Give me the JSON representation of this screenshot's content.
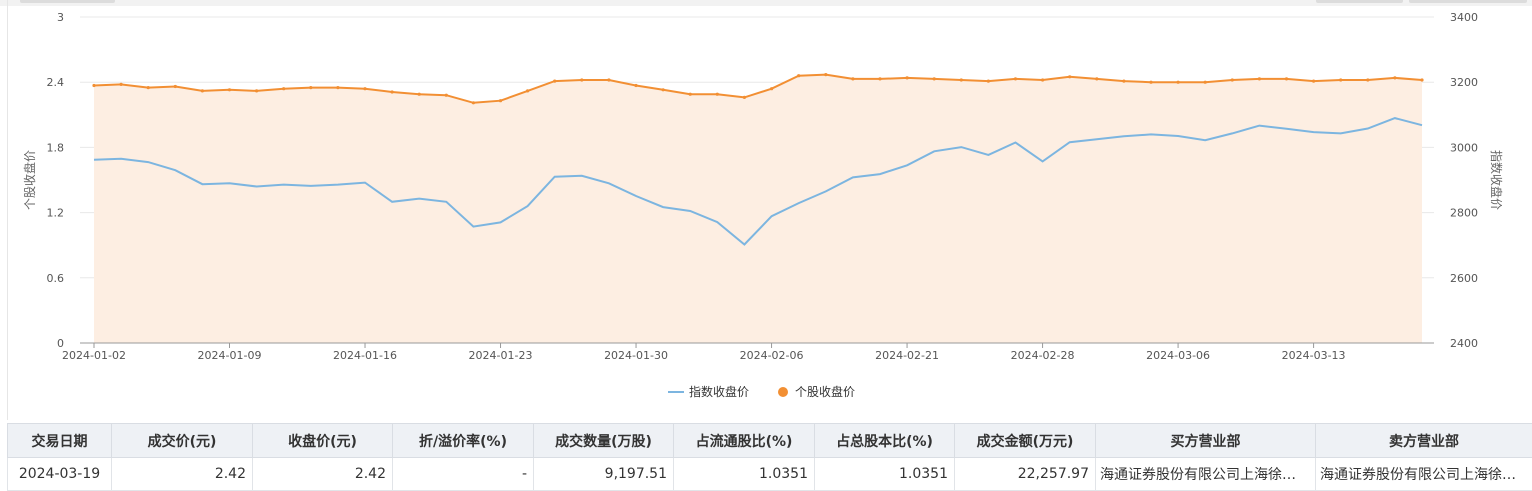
{
  "chart_data": {
    "type": "line",
    "title": "",
    "x": [
      "2024-01-02",
      "2024-01-03",
      "2024-01-04",
      "2024-01-05",
      "2024-01-08",
      "2024-01-09",
      "2024-01-10",
      "2024-01-11",
      "2024-01-12",
      "2024-01-15",
      "2024-01-16",
      "2024-01-17",
      "2024-01-18",
      "2024-01-19",
      "2024-01-22",
      "2024-01-23",
      "2024-01-24",
      "2024-01-25",
      "2024-01-26",
      "2024-01-29",
      "2024-01-30",
      "2024-01-31",
      "2024-02-01",
      "2024-02-02",
      "2024-02-05",
      "2024-02-06",
      "2024-02-07",
      "2024-02-08",
      "2024-02-19",
      "2024-02-20",
      "2024-02-21",
      "2024-02-22",
      "2024-02-23",
      "2024-02-26",
      "2024-02-27",
      "2024-02-28",
      "2024-02-29",
      "2024-03-01",
      "2024-03-04",
      "2024-03-05",
      "2024-03-06",
      "2024-03-07",
      "2024-03-08",
      "2024-03-11",
      "2024-03-12",
      "2024-03-13",
      "2024-03-14",
      "2024-03-15",
      "2024-03-18",
      "2024-03-19"
    ],
    "x_tick_labels": [
      "2024-01-02",
      "2024-01-09",
      "2024-01-16",
      "2024-01-23",
      "2024-01-30",
      "2024-02-06",
      "2024-02-21",
      "2024-02-28",
      "2024-03-06",
      "2024-03-13"
    ],
    "y_left": {
      "label": "个股收盘价",
      "ylim": [
        0,
        3
      ],
      "ticks": [
        "0",
        "0.6",
        "1.2",
        "1.8",
        "2.4",
        "3"
      ]
    },
    "y_right": {
      "label": "指数收盘价",
      "ylim": [
        2400,
        3400
      ],
      "ticks": [
        "2400",
        "2600",
        "2800",
        "3000",
        "3200",
        "3400"
      ]
    },
    "grid": true,
    "legend": "bottom-center",
    "series": [
      {
        "name": "指数收盘价",
        "axis": "right",
        "color": "#7cb5e0",
        "values": [
          2962,
          2965,
          2955,
          2930,
          2887,
          2890,
          2880,
          2886,
          2882,
          2886,
          2892,
          2833,
          2843,
          2833,
          2757,
          2770,
          2820,
          2910,
          2913,
          2890,
          2851,
          2817,
          2805,
          2771,
          2702,
          2789,
          2829,
          2865,
          2908,
          2918,
          2945,
          2988,
          3001,
          2977,
          3015,
          2957,
          3016,
          3025,
          3034,
          3040,
          3035,
          3022,
          3043,
          3067,
          3057,
          3047,
          3043,
          3058,
          3090,
          3068
        ],
        "style": "line"
      },
      {
        "name": "个股收盘价",
        "axis": "left",
        "color": "#f28f33",
        "values": [
          2.37,
          2.38,
          2.35,
          2.36,
          2.32,
          2.33,
          2.32,
          2.34,
          2.35,
          2.35,
          2.34,
          2.31,
          2.29,
          2.28,
          2.21,
          2.23,
          2.32,
          2.41,
          2.42,
          2.42,
          2.37,
          2.33,
          2.29,
          2.29,
          2.26,
          2.34,
          2.46,
          2.47,
          2.43,
          2.43,
          2.44,
          2.43,
          2.42,
          2.41,
          2.43,
          2.42,
          2.45,
          2.43,
          2.41,
          2.4,
          2.4,
          2.4,
          2.42,
          2.43,
          2.43,
          2.41,
          2.42,
          2.42,
          2.44,
          2.42
        ],
        "style": "area-with-markers"
      }
    ],
    "colors": {
      "index_line": "#7cb5e0",
      "stock_line": "#f28f33",
      "stock_fill": "#fdeee2",
      "grid": "#e8e8e8"
    }
  },
  "table": {
    "headers": [
      "交易日期",
      "成交价(元)",
      "收盘价(元)",
      "折/溢价率(%)",
      "成交数量(万股)",
      "占流通股比(%)",
      "占总股本比(%)",
      "成交金额(万元)",
      "买方营业部",
      "卖方营业部"
    ],
    "rows": [
      [
        "2024-03-19",
        "2.42",
        "2.42",
        "-",
        "9,197.51",
        "1.0351",
        "1.0351",
        "22,257.97",
        "海通证券股份有限公司上海徐…",
        "海通证券股份有限公司上海徐…"
      ]
    ]
  }
}
